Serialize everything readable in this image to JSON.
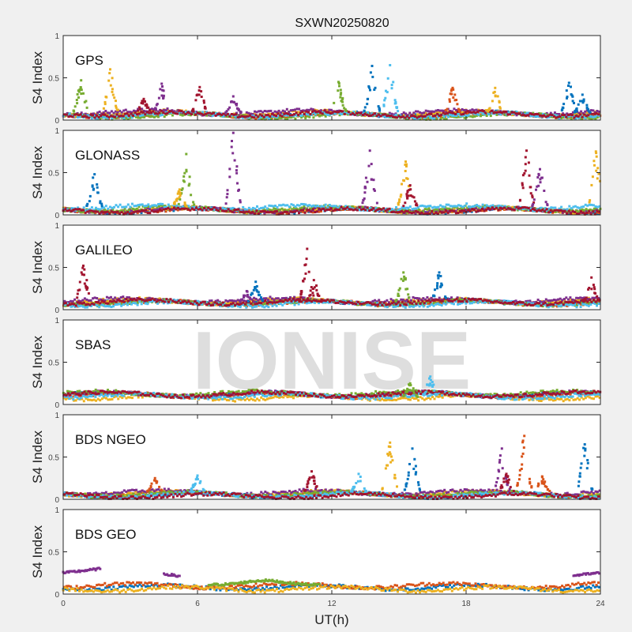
{
  "chart_data": {
    "type": "scatter",
    "title": "SXWN20250820",
    "xlabel": "UT(h)",
    "xlim": [
      0,
      24
    ],
    "xticks": [
      "0",
      "6",
      "12",
      "18",
      "24"
    ],
    "ylim": [
      0,
      1
    ],
    "yticks": [
      "0",
      "0.5",
      "1"
    ],
    "ylabel": "S4 Index",
    "grid": false,
    "watermark": "IONISE",
    "palette": [
      "#0072BD",
      "#D95319",
      "#EDB120",
      "#7E2F8E",
      "#77AC30",
      "#4DBEEE",
      "#A2142F"
    ],
    "panels": [
      {
        "label": "GPS",
        "baselines": [
          {
            "color": "#0072BD",
            "level": 0.07
          },
          {
            "color": "#D95319",
            "level": 0.06
          },
          {
            "color": "#EDB120",
            "level": 0.08
          },
          {
            "color": "#7E2F8E",
            "level": 0.09
          },
          {
            "color": "#77AC30",
            "level": 0.05
          },
          {
            "color": "#4DBEEE",
            "level": 0.06
          },
          {
            "color": "#A2142F",
            "level": 0.07
          }
        ],
        "spikes": [
          {
            "x": 0.8,
            "peak": 0.47,
            "color": "#77AC30"
          },
          {
            "x": 2.1,
            "peak": 0.6,
            "color": "#EDB120"
          },
          {
            "x": 3.6,
            "peak": 0.25,
            "color": "#A2142F"
          },
          {
            "x": 4.4,
            "peak": 0.43,
            "color": "#7E2F8E"
          },
          {
            "x": 6.1,
            "peak": 0.39,
            "color": "#A2142F"
          },
          {
            "x": 7.6,
            "peak": 0.28,
            "color": "#7E2F8E"
          },
          {
            "x": 12.3,
            "peak": 0.45,
            "color": "#77AC30"
          },
          {
            "x": 13.8,
            "peak": 0.64,
            "color": "#0072BD"
          },
          {
            "x": 14.6,
            "peak": 0.65,
            "color": "#4DBEEE"
          },
          {
            "x": 17.4,
            "peak": 0.38,
            "color": "#D95319"
          },
          {
            "x": 19.3,
            "peak": 0.38,
            "color": "#EDB120"
          },
          {
            "x": 22.6,
            "peak": 0.44,
            "color": "#0072BD"
          },
          {
            "x": 23.2,
            "peak": 0.3,
            "color": "#0072BD"
          }
        ]
      },
      {
        "label": "GLONASS",
        "baselines": [
          {
            "color": "#0072BD",
            "level": 0.05
          },
          {
            "color": "#D95319",
            "level": 0.05
          },
          {
            "color": "#EDB120",
            "level": 0.06
          },
          {
            "color": "#7E2F8E",
            "level": 0.06
          },
          {
            "color": "#77AC30",
            "level": 0.07
          },
          {
            "color": "#4DBEEE",
            "level": 0.09
          },
          {
            "color": "#A2142F",
            "level": 0.05
          }
        ],
        "spikes": [
          {
            "x": 1.4,
            "peak": 0.48,
            "color": "#0072BD"
          },
          {
            "x": 5.5,
            "peak": 0.72,
            "color": "#77AC30"
          },
          {
            "x": 5.2,
            "peak": 0.3,
            "color": "#EDB120"
          },
          {
            "x": 7.6,
            "peak": 0.97,
            "color": "#7E2F8E"
          },
          {
            "x": 13.7,
            "peak": 0.76,
            "color": "#7E2F8E"
          },
          {
            "x": 15.3,
            "peak": 0.63,
            "color": "#EDB120"
          },
          {
            "x": 15.5,
            "peak": 0.35,
            "color": "#A2142F"
          },
          {
            "x": 20.7,
            "peak": 0.76,
            "color": "#A2142F"
          },
          {
            "x": 21.3,
            "peak": 0.54,
            "color": "#7E2F8E"
          },
          {
            "x": 23.8,
            "peak": 0.75,
            "color": "#EDB120"
          }
        ]
      },
      {
        "label": "GALILEO",
        "baselines": [
          {
            "color": "#0072BD",
            "level": 0.09
          },
          {
            "color": "#D95319",
            "level": 0.08
          },
          {
            "color": "#EDB120",
            "level": 0.1
          },
          {
            "color": "#7E2F8E",
            "level": 0.11
          },
          {
            "color": "#77AC30",
            "level": 0.08
          },
          {
            "color": "#4DBEEE",
            "level": 0.07
          },
          {
            "color": "#A2142F",
            "level": 0.09
          }
        ],
        "spikes": [
          {
            "x": 0.9,
            "peak": 0.52,
            "color": "#A2142F"
          },
          {
            "x": 8.2,
            "peak": 0.22,
            "color": "#7E2F8E"
          },
          {
            "x": 8.6,
            "peak": 0.33,
            "color": "#0072BD"
          },
          {
            "x": 10.9,
            "peak": 0.72,
            "color": "#A2142F"
          },
          {
            "x": 11.2,
            "peak": 0.35,
            "color": "#A2142F"
          },
          {
            "x": 15.2,
            "peak": 0.44,
            "color": "#77AC30"
          },
          {
            "x": 16.8,
            "peak": 0.44,
            "color": "#0072BD"
          },
          {
            "x": 23.6,
            "peak": 0.38,
            "color": "#A2142F"
          }
        ]
      },
      {
        "label": "SBAS",
        "baselines": [
          {
            "color": "#0072BD",
            "level": 0.12
          },
          {
            "color": "#D95319",
            "level": 0.11
          },
          {
            "color": "#EDB120",
            "level": 0.08
          },
          {
            "color": "#7E2F8E",
            "level": 0.12
          },
          {
            "color": "#77AC30",
            "level": 0.13
          },
          {
            "color": "#4DBEEE",
            "level": 0.1
          },
          {
            "color": "#A2142F",
            "level": 0.12
          }
        ],
        "spikes": [
          {
            "x": 15.5,
            "peak": 0.25,
            "color": "#77AC30"
          },
          {
            "x": 16.4,
            "peak": 0.33,
            "color": "#4DBEEE"
          }
        ]
      },
      {
        "label": "BDS NGEO",
        "baselines": [
          {
            "color": "#0072BD",
            "level": 0.05
          },
          {
            "color": "#D95319",
            "level": 0.06
          },
          {
            "color": "#EDB120",
            "level": 0.07
          },
          {
            "color": "#7E2F8E",
            "level": 0.08
          },
          {
            "color": "#77AC30",
            "level": 0.06
          },
          {
            "color": "#4DBEEE",
            "level": 0.05
          },
          {
            "color": "#A2142F",
            "level": 0.04
          }
        ],
        "spikes": [
          {
            "x": 4.1,
            "peak": 0.25,
            "color": "#D95319"
          },
          {
            "x": 6.0,
            "peak": 0.28,
            "color": "#4DBEEE"
          },
          {
            "x": 11.1,
            "peak": 0.33,
            "color": "#A2142F"
          },
          {
            "x": 13.2,
            "peak": 0.3,
            "color": "#4DBEEE"
          },
          {
            "x": 14.6,
            "peak": 0.67,
            "color": "#EDB120"
          },
          {
            "x": 15.6,
            "peak": 0.6,
            "color": "#0072BD"
          },
          {
            "x": 19.6,
            "peak": 0.6,
            "color": "#7E2F8E"
          },
          {
            "x": 19.8,
            "peak": 0.3,
            "color": "#A2142F"
          },
          {
            "x": 20.6,
            "peak": 0.75,
            "color": "#D95319"
          },
          {
            "x": 21.4,
            "peak": 0.27,
            "color": "#D95319"
          },
          {
            "x": 23.3,
            "peak": 0.65,
            "color": "#0072BD"
          }
        ]
      },
      {
        "label": "BDS GEO",
        "baselines": [
          {
            "color": "#0072BD",
            "level": 0.08
          },
          {
            "color": "#D95319",
            "level": 0.1
          },
          {
            "color": "#EDB120",
            "level": 0.06
          }
        ],
        "tracks": [
          {
            "color": "#7E2F8E",
            "from": 0,
            "to": 1.7,
            "start": 0.25,
            "end": 0.3
          },
          {
            "color": "#7E2F8E",
            "from": 4.5,
            "to": 5.2,
            "start": 0.24,
            "end": 0.21
          },
          {
            "color": "#7E2F8E",
            "from": 22.8,
            "to": 24,
            "start": 0.22,
            "end": 0.25
          },
          {
            "color": "#77AC30",
            "from": 6.5,
            "to": 11.5,
            "start": 0.11,
            "end": 0.11,
            "bump": 0.16,
            "bump_at": 9
          }
        ],
        "spikes": []
      }
    ]
  }
}
